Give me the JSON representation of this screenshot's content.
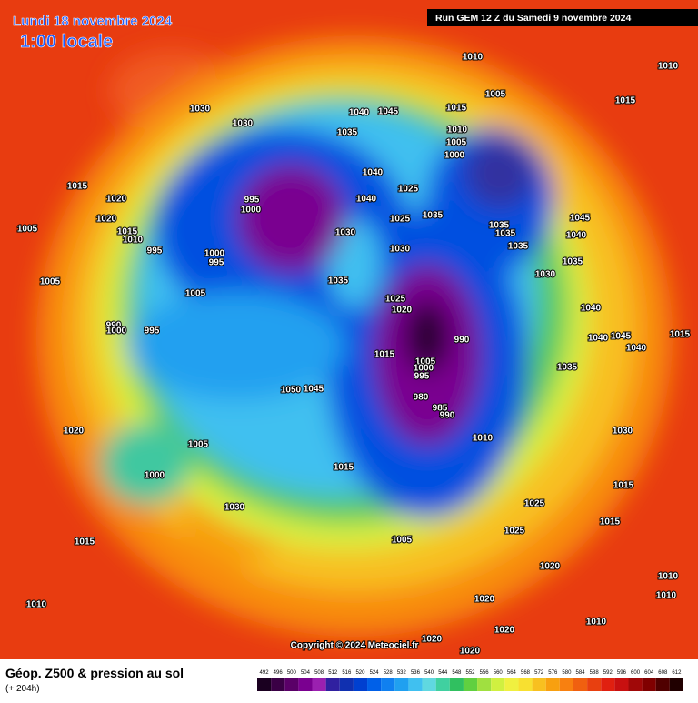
{
  "header": {
    "date": "Lundi 18 novembre 2024",
    "time": "1:00 locale",
    "run": "Run GEM 12 Z du Samedi 9 novembre 2024"
  },
  "map": {
    "copyright": "Copyright © 2024 Meteociel.fr",
    "isobar_labels": [
      "1010",
      "1010",
      "1005",
      "1015",
      "1030",
      "1030",
      "1040",
      "1045",
      "1035",
      "1015",
      "1010",
      "1005",
      "1000",
      "1015",
      "1020",
      "1020",
      "1005",
      "1015",
      "1010",
      "995",
      "995",
      "1000",
      "1000",
      "995",
      "1040",
      "1040",
      "1025",
      "1035",
      "1025",
      "1030",
      "1030",
      "1035",
      "1035",
      "1035",
      "1045",
      "1040",
      "1035",
      "1030",
      "1005",
      "1005",
      "1035",
      "1025",
      "1020",
      "990",
      "1000",
      "995",
      "990",
      "1015",
      "1005",
      "1000",
      "995",
      "980",
      "985",
      "990",
      "1040",
      "1035",
      "1050",
      "1045",
      "1020",
      "1005",
      "1010",
      "1030",
      "1000",
      "1015",
      "1015",
      "1025",
      "1030",
      "1015",
      "1025",
      "1005",
      "1020",
      "1015",
      "1010",
      "1020",
      "1020",
      "1020",
      "1020",
      "1010",
      "1010",
      "1015",
      "1045",
      "1040",
      "1040",
      "1010"
    ]
  },
  "footer": {
    "title": "Géop. Z500 & pression au sol",
    "lead": "(+ 204h)"
  },
  "legend": {
    "levels": [
      492,
      496,
      500,
      504,
      508,
      512,
      516,
      520,
      524,
      528,
      532,
      536,
      540,
      544,
      548,
      552,
      556,
      560,
      564,
      568,
      572,
      576,
      580,
      584,
      588,
      592,
      596,
      600,
      604,
      608,
      612
    ],
    "colors": [
      "#1a0020",
      "#3a0045",
      "#5a0068",
      "#7a0090",
      "#9b20b0",
      "#3020a0",
      "#1030b0",
      "#0040d0",
      "#0060e8",
      "#1080f0",
      "#20a0f0",
      "#40c0f0",
      "#60d8e0",
      "#40d0a0",
      "#30c060",
      "#60d040",
      "#a0e040",
      "#d0f040",
      "#f0f040",
      "#f8e030",
      "#f8c020",
      "#f8a010",
      "#f88010",
      "#f06010",
      "#e84010",
      "#e02010",
      "#c81010",
      "#a00808",
      "#800000",
      "#500000",
      "#200000"
    ]
  }
}
